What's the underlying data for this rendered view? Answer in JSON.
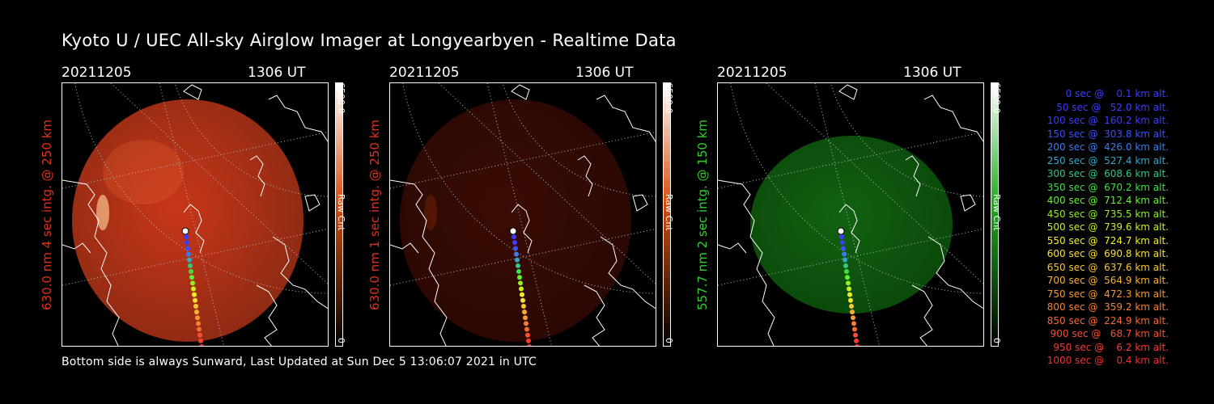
{
  "title": "Kyoto U / UEC All-sky Airglow Imager at Longyearbyen - Realtime Data",
  "footer": "Bottom side is always Sunward, Last Updated at Sun Dec  5 13:06:07 2021 in UTC",
  "panels": [
    {
      "date": "20211205",
      "time": "1306 UT",
      "ylabel": "630.0 nm 4 sec intg. @ 250 km",
      "ylabel_color": "#e0301a",
      "cbar_max": "6500.0",
      "cbar_label": "Raw Cnt",
      "cbar_min": "0",
      "cbar_color": "#d85010",
      "intensity": "bright-red"
    },
    {
      "date": "20211205",
      "time": "1306 UT",
      "ylabel": "630.0 nm 1 sec intg. @ 250 km",
      "ylabel_color": "#e0301a",
      "cbar_max": "6500.0",
      "cbar_label": "Raw Cnt",
      "cbar_min": "0",
      "cbar_color": "#d85010",
      "intensity": "dim-red"
    },
    {
      "date": "20211205",
      "time": "1306 UT",
      "ylabel": "557.7 nm 2 sec intg. @ 150 km",
      "ylabel_color": "#30d030",
      "cbar_max": "6500.0",
      "cbar_label": "Raw Cnt",
      "cbar_min": "0",
      "cbar_color": "#20b020",
      "intensity": "green"
    }
  ],
  "legend": [
    {
      "text": "   0 sec @    0.1 km alt.",
      "color": "#3c3cff"
    },
    {
      "text": "  50 sec @   52.0 km alt.",
      "color": "#3c3cff"
    },
    {
      "text": " 100 sec @  160.2 km alt.",
      "color": "#3c3cff"
    },
    {
      "text": " 150 sec @  303.8 km alt.",
      "color": "#3c50ff"
    },
    {
      "text": " 200 sec @  426.0 km alt.",
      "color": "#3a7cf0"
    },
    {
      "text": " 250 sec @  527.4 km alt.",
      "color": "#30a8c8"
    },
    {
      "text": " 300 sec @  608.6 km alt.",
      "color": "#30c880"
    },
    {
      "text": " 350 sec @  670.2 km alt.",
      "color": "#40e040"
    },
    {
      "text": " 400 sec @  712.4 km alt.",
      "color": "#60f030"
    },
    {
      "text": " 450 sec @  735.5 km alt.",
      "color": "#90f020"
    },
    {
      "text": " 500 sec @  739.6 km alt.",
      "color": "#c8f020"
    },
    {
      "text": " 550 sec @  724.7 km alt.",
      "color": "#f0f020"
    },
    {
      "text": " 600 sec @  690.8 km alt.",
      "color": "#f8e030"
    },
    {
      "text": " 650 sec @  637.6 km alt.",
      "color": "#f8c830"
    },
    {
      "text": " 700 sec @  564.9 km alt.",
      "color": "#f8b030"
    },
    {
      "text": " 750 sec @  472.3 km alt.",
      "color": "#f89830"
    },
    {
      "text": " 800 sec @  359.2 km alt.",
      "color": "#f88030"
    },
    {
      "text": " 850 sec @  224.9 km alt.",
      "color": "#f86830"
    },
    {
      "text": " 900 sec @   68.7 km alt.",
      "color": "#f85030"
    },
    {
      "text": " 950 sec @    6.2 km alt.",
      "color": "#f83c30"
    },
    {
      "text": "1000 sec @    0.4 km alt.",
      "color": "#f03030"
    }
  ]
}
